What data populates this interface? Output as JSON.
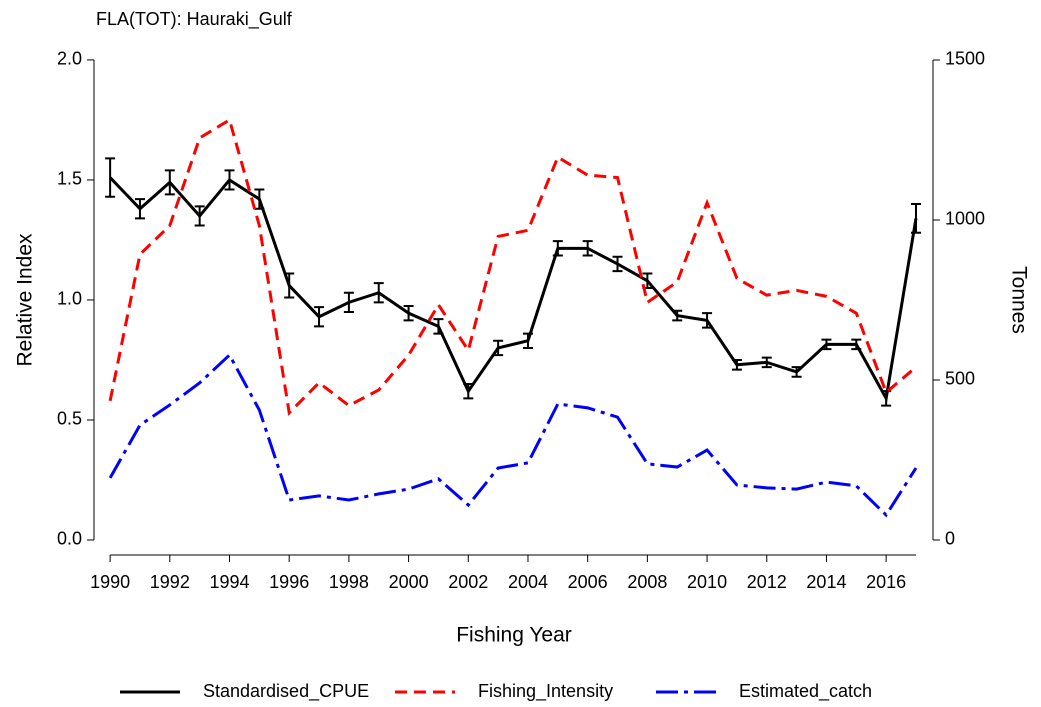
{
  "chart_data": {
    "type": "line",
    "title": "FLA(TOT): Hauraki_Gulf",
    "x_label": "Fishing Year",
    "y_label": "Relative Index",
    "y2_label": "Tonnes",
    "x": [
      1990,
      1991,
      1992,
      1993,
      1994,
      1995,
      1996,
      1997,
      1998,
      1999,
      2000,
      2001,
      2002,
      2003,
      2004,
      2005,
      2006,
      2007,
      2008,
      2009,
      2010,
      2011,
      2012,
      2013,
      2014,
      2015,
      2016,
      2017
    ],
    "xlim": [
      1989.46,
      2017.57
    ],
    "xticks": [
      1990,
      1992,
      1994,
      1996,
      1998,
      2000,
      2002,
      2004,
      2006,
      2008,
      2010,
      2012,
      2014,
      2016
    ],
    "ylim": [
      -0.0625,
      2.083
    ],
    "yticks": [
      {
        "value": 0,
        "label": "0.0"
      },
      0.5,
      {
        "value": 1,
        "label": "1.0"
      },
      1.5,
      {
        "value": 2,
        "label": "2.0"
      }
    ],
    "y2lim": [
      -46.9,
      1562.5
    ],
    "y2ticks": [
      0,
      500,
      1000,
      1500
    ],
    "legend": "bottom",
    "series": [
      {
        "name": "Standardised_CPUE",
        "color": "#000000",
        "style": "solid",
        "values": [
          1.51,
          1.38,
          1.49,
          1.35,
          1.5,
          1.42,
          1.06,
          0.93,
          0.99,
          1.03,
          0.945,
          0.89,
          0.62,
          0.8,
          0.83,
          1.215,
          1.215,
          1.15,
          1.08,
          0.935,
          0.915,
          0.73,
          0.74,
          0.7,
          0.815,
          0.815,
          0.59,
          1.34
        ],
        "errors": [
          0.08,
          0.04,
          0.05,
          0.04,
          0.04,
          0.04,
          0.05,
          0.04,
          0.04,
          0.04,
          0.03,
          0.03,
          0.03,
          0.03,
          0.03,
          0.03,
          0.03,
          0.03,
          0.03,
          0.02,
          0.03,
          0.02,
          0.02,
          0.02,
          0.02,
          0.02,
          0.03,
          0.06
        ]
      },
      {
        "name": "Fishing_Intensity",
        "color": "#ff0000",
        "style": "dashed",
        "values": [
          0.58,
          1.19,
          1.31,
          1.675,
          1.75,
          1.31,
          0.53,
          0.655,
          0.56,
          0.625,
          0.77,
          0.98,
          0.79,
          1.265,
          1.29,
          1.595,
          1.52,
          1.51,
          0.99,
          1.075,
          1.405,
          1.09,
          1.02,
          1.04,
          1.015,
          0.945,
          0.615,
          0.72
        ]
      },
      {
        "name": "Estimated_catch",
        "color": "#0000ff",
        "style": "dashdot",
        "axis": "y2",
        "values": [
          194,
          359,
          422,
          491,
          578,
          406,
          125,
          138,
          125,
          144,
          159,
          191,
          109,
          225,
          241,
          425,
          413,
          384,
          238,
          228,
          281,
          172,
          163,
          159,
          181,
          169,
          78,
          225
        ]
      }
    ]
  }
}
